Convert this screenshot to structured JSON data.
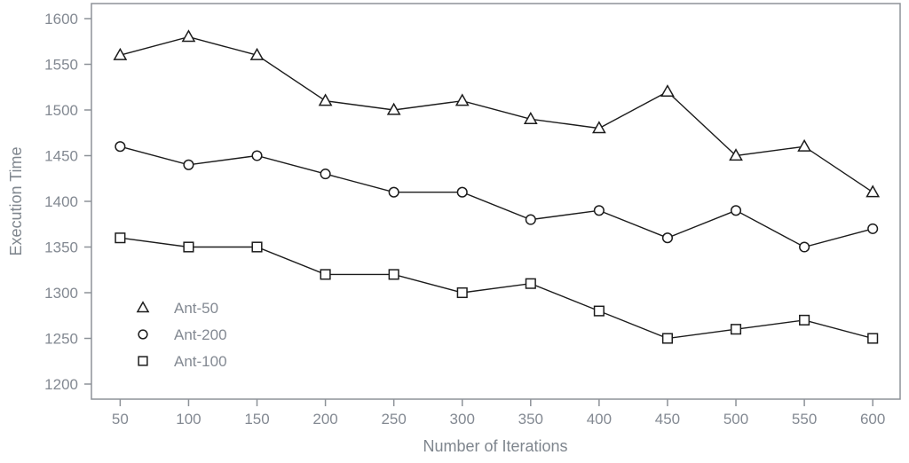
{
  "chart_data": {
    "type": "line",
    "xlabel": "Number of Iterations",
    "ylabel": "Execution Time",
    "x": [
      50,
      100,
      150,
      200,
      250,
      300,
      350,
      400,
      450,
      500,
      550,
      600
    ],
    "series": [
      {
        "name": "Ant-50",
        "marker": "triangle",
        "values": [
          1560,
          1580,
          1560,
          1510,
          1500,
          1510,
          1490,
          1480,
          1520,
          1450,
          1460,
          1410
        ]
      },
      {
        "name": "Ant-200",
        "marker": "circle",
        "values": [
          1460,
          1440,
          1450,
          1430,
          1410,
          1410,
          1380,
          1390,
          1360,
          1390,
          1350,
          1370
        ]
      },
      {
        "name": "Ant-100",
        "marker": "square",
        "values": [
          1360,
          1350,
          1350,
          1320,
          1320,
          1300,
          1310,
          1280,
          1250,
          1260,
          1270,
          1250
        ]
      }
    ],
    "x_ticks": [
      50,
      100,
      150,
      200,
      250,
      300,
      350,
      400,
      450,
      500,
      550,
      600
    ],
    "y_ticks": [
      1200,
      1250,
      1300,
      1350,
      1400,
      1450,
      1500,
      1550,
      1600
    ],
    "xlim": [
      29,
      620
    ],
    "ylim": [
      1183.5,
      1616.5
    ],
    "grid": false,
    "legend": {
      "position": "inside-bottom-left",
      "entries": [
        "Ant-50",
        "Ant-200",
        "Ant-100"
      ]
    },
    "colors": {
      "line": "#1c1c1c",
      "marker_fill": "#ffffff",
      "axis_text": "#838992",
      "border": "#8d9298",
      "background": "#ffffff"
    }
  }
}
